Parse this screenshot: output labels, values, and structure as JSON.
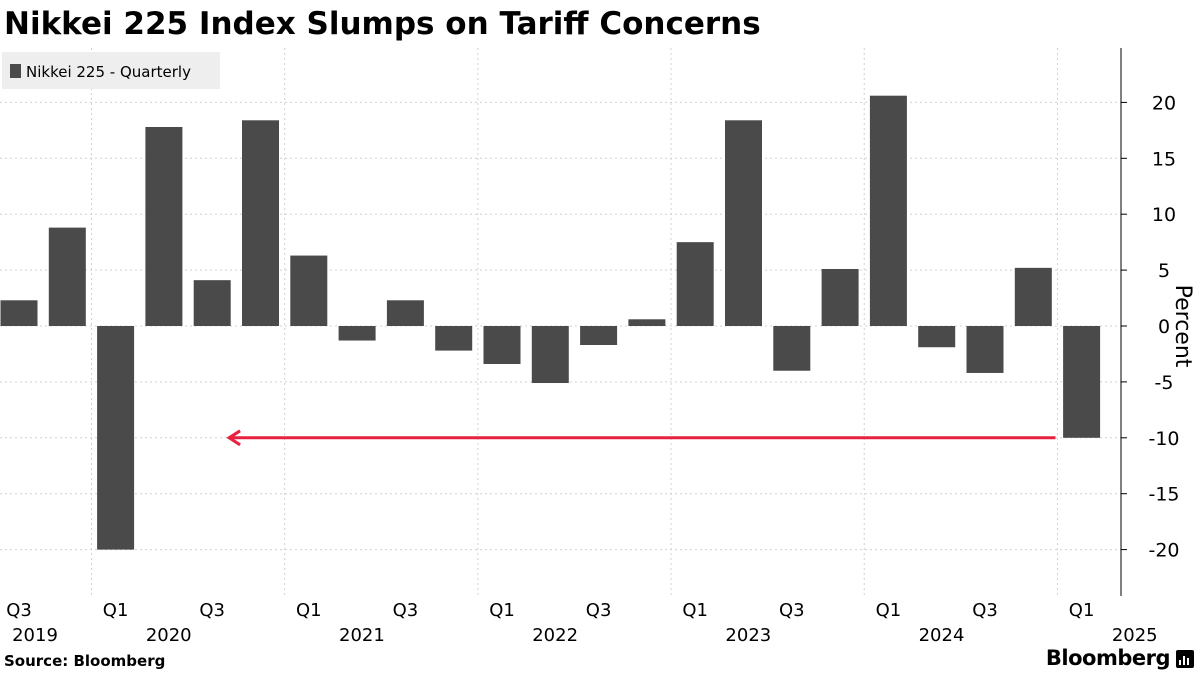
{
  "header": {
    "title": "Nikkei 225 Index Slumps on Tariff Concerns"
  },
  "footer": {
    "source": "Source: Bloomberg",
    "brand": "Bloomberg"
  },
  "colors": {
    "bar": "#4a4a4a",
    "arrow": "#e8213f",
    "grid": "#d0d0d0",
    "legend_bg": "#eeeeee"
  },
  "chart_data": {
    "type": "bar",
    "legend": {
      "label": "Nikkei 225 - Quarterly",
      "placement": "top-left"
    },
    "ylabel": "Percent",
    "ylim": [
      -24,
      24
    ],
    "yticks": [
      20,
      15,
      10,
      5,
      0,
      -5,
      -10,
      -15,
      -20
    ],
    "grid": true,
    "categories": [
      "2019 Q3",
      "2019 Q4",
      "2020 Q1",
      "2020 Q2",
      "2020 Q3",
      "2020 Q4",
      "2021 Q1",
      "2021 Q2",
      "2021 Q3",
      "2021 Q4",
      "2022 Q1",
      "2022 Q2",
      "2022 Q3",
      "2022 Q4",
      "2023 Q1",
      "2023 Q2",
      "2023 Q3",
      "2023 Q4",
      "2024 Q1",
      "2024 Q2",
      "2024 Q3",
      "2024 Q4",
      "2025 Q1"
    ],
    "values": [
      2.3,
      8.8,
      -20.0,
      17.8,
      4.1,
      18.4,
      6.3,
      -1.3,
      2.3,
      -2.2,
      -3.4,
      -5.1,
      -1.7,
      0.6,
      7.5,
      18.4,
      -4.0,
      5.1,
      20.6,
      -1.9,
      -4.2,
      5.2,
      -10.0
    ],
    "xtick_labels": [
      {
        "q": "Q3",
        "year": "2019"
      },
      {
        "q": "Q1",
        "year": "2020"
      },
      {
        "q": "Q3",
        "year": ""
      },
      {
        "q": "Q1",
        "year": "2021"
      },
      {
        "q": "Q3",
        "year": ""
      },
      {
        "q": "Q1",
        "year": "2022"
      },
      {
        "q": "Q3",
        "year": ""
      },
      {
        "q": "Q1",
        "year": "2023"
      },
      {
        "q": "Q3",
        "year": ""
      },
      {
        "q": "Q1",
        "year": "2024"
      },
      {
        "q": "Q3",
        "year": ""
      },
      {
        "q": "Q1",
        "year": "2025"
      }
    ],
    "annotation": {
      "type": "arrow",
      "y": -10,
      "from_category": "2025 Q1",
      "to_category": "2020 Q1"
    }
  }
}
